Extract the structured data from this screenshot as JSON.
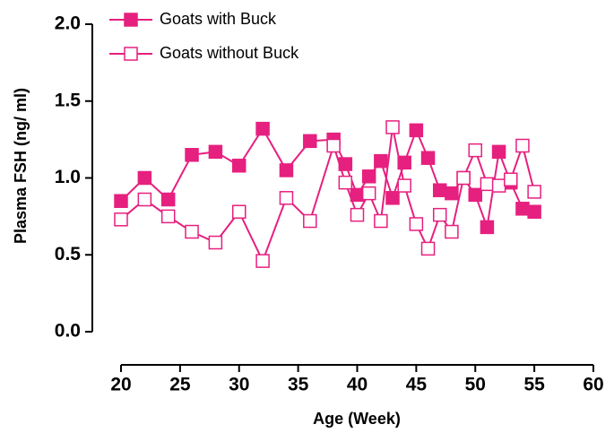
{
  "chart_data": {
    "type": "line",
    "x_label": "Age (Week)",
    "y_label": "Plasma FSH (ng/ ml)",
    "x": [
      20,
      22,
      24,
      26,
      28,
      30,
      32,
      34,
      36,
      38,
      39,
      40,
      41,
      42,
      43,
      44,
      45,
      46,
      47,
      48,
      49,
      50,
      51,
      52,
      53,
      54,
      55
    ],
    "series": [
      {
        "name": "Goats with Buck",
        "color": "#e6207f",
        "marker": "filled-square",
        "values": [
          0.85,
          1.0,
          0.86,
          1.15,
          1.17,
          1.08,
          1.32,
          1.05,
          1.24,
          1.25,
          1.09,
          0.89,
          1.01,
          1.11,
          0.87,
          1.1,
          1.31,
          1.13,
          0.92,
          0.9,
          1.0,
          0.89,
          0.68,
          1.17,
          0.97,
          0.8,
          0.78
        ]
      },
      {
        "name": "Goats without Buck",
        "color": "#e6207f",
        "marker": "open-square",
        "values": [
          0.73,
          0.86,
          0.75,
          0.65,
          0.58,
          0.78,
          0.46,
          0.87,
          0.72,
          1.21,
          0.97,
          0.76,
          0.9,
          0.72,
          1.33,
          0.95,
          0.7,
          0.54,
          0.76,
          0.65,
          1.0,
          1.18,
          0.96,
          0.95,
          0.99,
          1.21,
          0.91
        ]
      }
    ],
    "xlim": [
      20,
      60
    ],
    "xticks": [
      20,
      25,
      30,
      35,
      40,
      45,
      50,
      55,
      60
    ],
    "ylim": [
      0,
      2
    ],
    "yticks": [
      {
        "value": 0,
        "label": "0.0"
      },
      0.5,
      {
        "value": 1,
        "label": "1.0"
      },
      1.5,
      {
        "value": 2,
        "label": "2.0"
      }
    ],
    "legend": "top-left"
  }
}
